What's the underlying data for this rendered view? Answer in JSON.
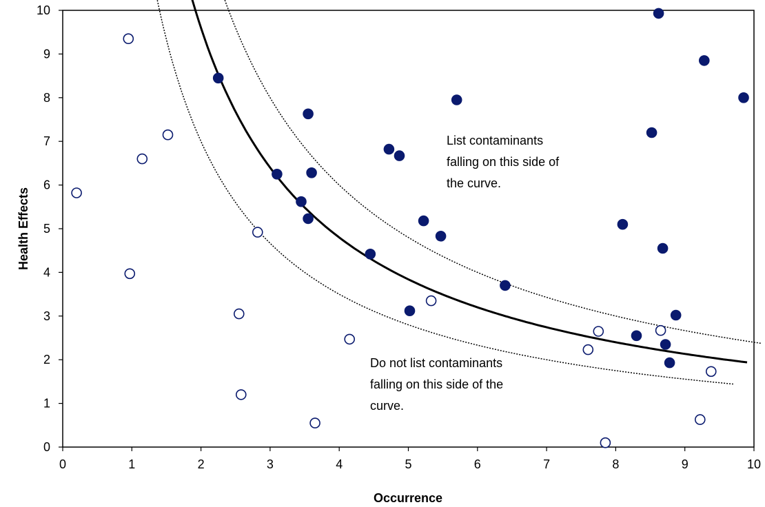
{
  "chart_data": {
    "type": "scatter",
    "title": "",
    "xlabel": "Occurrence",
    "ylabel": "Health Effects",
    "xlim": [
      0,
      10
    ],
    "ylim": [
      0,
      10
    ],
    "x_ticks": [
      0,
      1,
      2,
      3,
      4,
      5,
      6,
      7,
      8,
      9,
      10
    ],
    "y_ticks": [
      0,
      1,
      2,
      3,
      4,
      5,
      6,
      7,
      8,
      9,
      10
    ],
    "grid": false,
    "legend": "none",
    "colors": {
      "points": "#0a1a6e",
      "curve": "#000000"
    },
    "series": [
      {
        "marker": "filled-circle",
        "points": [
          [
            2.25,
            8.45
          ],
          [
            3.1,
            6.25
          ],
          [
            3.45,
            5.62
          ],
          [
            3.55,
            7.63
          ],
          [
            3.55,
            5.23
          ],
          [
            3.6,
            6.28
          ],
          [
            4.45,
            4.42
          ],
          [
            4.72,
            6.82
          ],
          [
            4.87,
            6.67
          ],
          [
            5.02,
            3.12
          ],
          [
            5.22,
            5.18
          ],
          [
            5.47,
            4.83
          ],
          [
            5.7,
            7.95
          ],
          [
            6.4,
            3.7
          ],
          [
            8.1,
            5.1
          ],
          [
            8.3,
            2.55
          ],
          [
            8.52,
            7.2
          ],
          [
            8.62,
            9.93
          ],
          [
            8.68,
            4.55
          ],
          [
            8.72,
            2.35
          ],
          [
            8.78,
            1.93
          ],
          [
            8.87,
            3.02
          ],
          [
            9.28,
            8.85
          ],
          [
            9.85,
            8.0
          ]
        ]
      },
      {
        "marker": "open-circle",
        "points": [
          [
            0.2,
            5.82
          ],
          [
            0.95,
            9.35
          ],
          [
            0.97,
            3.97
          ],
          [
            1.15,
            6.6
          ],
          [
            1.52,
            7.15
          ],
          [
            2.55,
            3.05
          ],
          [
            2.58,
            1.2
          ],
          [
            2.82,
            4.92
          ],
          [
            3.65,
            0.55
          ],
          [
            4.15,
            2.47
          ],
          [
            5.33,
            3.35
          ],
          [
            7.6,
            2.23
          ],
          [
            7.75,
            2.65
          ],
          [
            7.85,
            0.1
          ],
          [
            8.65,
            2.67
          ],
          [
            9.22,
            0.63
          ],
          [
            9.38,
            1.73
          ]
        ]
      }
    ],
    "curves": [
      {
        "style": "solid",
        "k": 19.2,
        "x_range": [
          1.37,
          9.9
        ]
      },
      {
        "style": "dotted",
        "k": 24,
        "x_range": [
          1.8,
          10.1
        ]
      },
      {
        "style": "dotted",
        "k": 14,
        "x_range": [
          0.98,
          9.7
        ]
      }
    ],
    "annotations": {
      "upper": [
        "List contaminants",
        "falling on this side of",
        "the curve."
      ],
      "lower": [
        "Do not list contaminants",
        "falling on this side of the",
        "curve."
      ]
    }
  }
}
